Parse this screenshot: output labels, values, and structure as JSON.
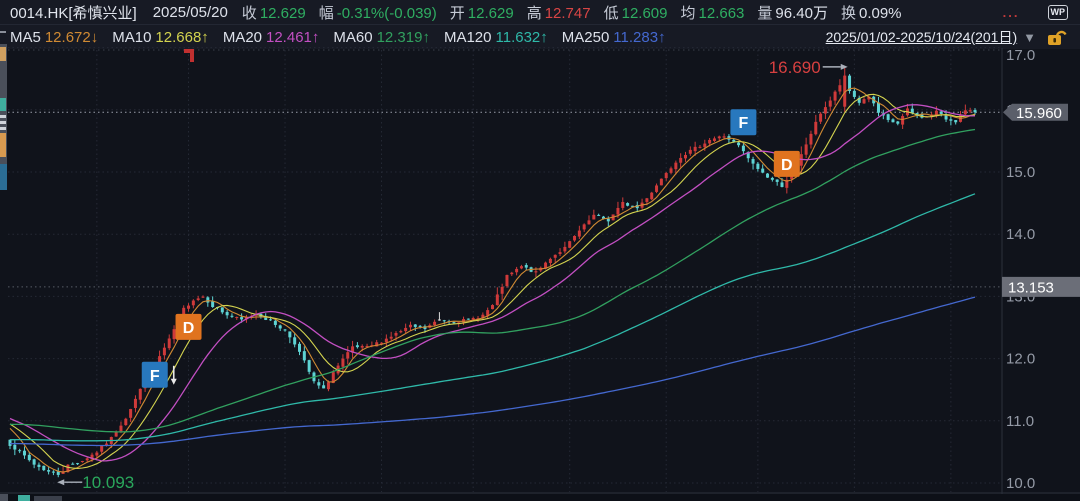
{
  "header": {
    "symbol": "0014.HK[希慎兴业]",
    "date": "2025/05/20",
    "quote_fields": [
      {
        "label": "收",
        "value": "12.629",
        "tone": "green"
      },
      {
        "label": "幅",
        "value": "-0.31%(-0.039)",
        "tone": "green"
      },
      {
        "label": "开",
        "value": "12.629",
        "tone": "green"
      },
      {
        "label": "高",
        "value": "12.747",
        "tone": "red"
      },
      {
        "label": "低",
        "value": "12.609",
        "tone": "green"
      },
      {
        "label": "均",
        "value": "12.663",
        "tone": "green"
      },
      {
        "label": "量",
        "value": "96.40万",
        "tone": "white"
      },
      {
        "label": "换",
        "value": "0.09%",
        "tone": "white"
      }
    ],
    "more_label": "...",
    "wp_badge_label": "WP"
  },
  "ma_bar": {
    "items": [
      {
        "label": "MA5",
        "value": "12.672",
        "arrow": "↓",
        "color": "#d08a33"
      },
      {
        "label": "MA10",
        "value": "12.668",
        "arrow": "↑",
        "color": "#d3d34f"
      },
      {
        "label": "MA20",
        "value": "12.461",
        "arrow": "↑",
        "color": "#c24fc2"
      },
      {
        "label": "MA60",
        "value": "12.319",
        "arrow": "↑",
        "color": "#31a05f"
      },
      {
        "label": "MA120",
        "value": "11.632",
        "arrow": "↑",
        "color": "#2fb9a9"
      },
      {
        "label": "MA250",
        "value": "11.283",
        "arrow": "↑",
        "color": "#4468cf"
      }
    ],
    "range_label": "2025/01/02-2025/10/24(201日)",
    "dropdown_glyph": "▼",
    "lock_icon": "unlocked-padlock"
  },
  "chart_data": {
    "type": "candlestick",
    "symbol": "0014.HK",
    "period": {
      "start": "2025/01/02",
      "end": "2025/10/24",
      "trading_days": 201
    },
    "y_axis": {
      "ticks": [
        17.0,
        16.0,
        15.0,
        14.0,
        13.0,
        12.0,
        11.0,
        10.0
      ],
      "side": "right"
    },
    "last_price": "15.960",
    "reference_level": "13.153",
    "selected_day": {
      "date": "2025/05/20",
      "index": 89,
      "open": 12.629,
      "high": 12.747,
      "low": 12.609,
      "close": 12.629,
      "avg": 12.663,
      "volume": "96.40万",
      "turnover": "0.09%"
    },
    "extremes": {
      "high": {
        "index": 173,
        "price": 16.69,
        "label": "16.690"
      },
      "low": {
        "index": 10,
        "price": 10.093,
        "label": "10.093"
      }
    },
    "signal_markers": [
      {
        "label": "F",
        "index": 30,
        "price": 11.74,
        "color": "#2878be",
        "arrow_below": true
      },
      {
        "label": "D",
        "index": 37,
        "price": 12.51,
        "color": "#e0731f",
        "arrow_below": false
      },
      {
        "label": "F",
        "index": 152,
        "price": 15.8,
        "color": "#2878be",
        "arrow_below": false
      },
      {
        "label": "D",
        "index": 161,
        "price": 15.13,
        "color": "#e0731f",
        "arrow_below": false
      }
    ],
    "month_tick_indices": [
      18,
      37,
      57,
      77,
      96,
      116,
      136,
      155,
      175,
      195
    ],
    "close_anchors": [
      [
        0,
        10.62
      ],
      [
        2,
        10.5
      ],
      [
        5,
        10.3
      ],
      [
        8,
        10.18
      ],
      [
        10,
        10.13
      ],
      [
        12,
        10.28
      ],
      [
        15,
        10.36
      ],
      [
        18,
        10.5
      ],
      [
        21,
        10.72
      ],
      [
        24,
        11.05
      ],
      [
        27,
        11.5
      ],
      [
        30,
        11.9
      ],
      [
        33,
        12.3
      ],
      [
        36,
        12.8
      ],
      [
        38,
        12.95
      ],
      [
        40,
        13.0
      ],
      [
        42,
        12.85
      ],
      [
        45,
        12.7
      ],
      [
        48,
        12.62
      ],
      [
        51,
        12.72
      ],
      [
        54,
        12.6
      ],
      [
        57,
        12.45
      ],
      [
        59,
        12.25
      ],
      [
        61,
        11.95
      ],
      [
        63,
        11.62
      ],
      [
        65,
        11.5
      ],
      [
        67,
        11.78
      ],
      [
        69,
        11.98
      ],
      [
        71,
        12.18
      ],
      [
        74,
        12.18
      ],
      [
        77,
        12.28
      ],
      [
        80,
        12.4
      ],
      [
        83,
        12.52
      ],
      [
        86,
        12.48
      ],
      [
        89,
        12.63
      ],
      [
        92,
        12.6
      ],
      [
        95,
        12.62
      ],
      [
        98,
        12.7
      ],
      [
        100,
        12.85
      ],
      [
        103,
        13.32
      ],
      [
        106,
        13.48
      ],
      [
        109,
        13.38
      ],
      [
        112,
        13.62
      ],
      [
        115,
        13.78
      ],
      [
        118,
        14.05
      ],
      [
        121,
        14.3
      ],
      [
        124,
        14.22
      ],
      [
        127,
        14.5
      ],
      [
        130,
        14.42
      ],
      [
        133,
        14.68
      ],
      [
        136,
        15.0
      ],
      [
        139,
        15.25
      ],
      [
        142,
        15.38
      ],
      [
        145,
        15.52
      ],
      [
        148,
        15.58
      ],
      [
        151,
        15.42
      ],
      [
        154,
        15.12
      ],
      [
        157,
        14.92
      ],
      [
        160,
        14.78
      ],
      [
        163,
        15.1
      ],
      [
        166,
        15.62
      ],
      [
        168,
        15.95
      ],
      [
        170,
        16.15
      ],
      [
        172,
        16.4
      ],
      [
        173,
        16.55
      ],
      [
        174,
        16.3
      ],
      [
        176,
        16.12
      ],
      [
        178,
        16.22
      ],
      [
        180,
        15.95
      ],
      [
        182,
        15.82
      ],
      [
        184,
        15.78
      ],
      [
        186,
        16.0
      ],
      [
        188,
        15.9
      ],
      [
        190,
        15.88
      ],
      [
        192,
        15.98
      ],
      [
        194,
        15.85
      ],
      [
        196,
        15.82
      ],
      [
        198,
        15.98
      ],
      [
        200,
        15.96
      ]
    ],
    "ma_windows": [
      5,
      10,
      20,
      60,
      120,
      250
    ],
    "colors": {
      "up": "#cf3a3a",
      "down": "#5ed3d3",
      "flat": "#d9d9d9",
      "grid": "#252935",
      "frame": "#2b303b",
      "level_line": "#9aa0ab",
      "axis_text": "#949aa6",
      "badge": "#5b5f6a",
      "annotation_red": "#d64040",
      "annotation_green": "#2aa85c",
      "arrow_gray": "#aab0ba"
    }
  }
}
